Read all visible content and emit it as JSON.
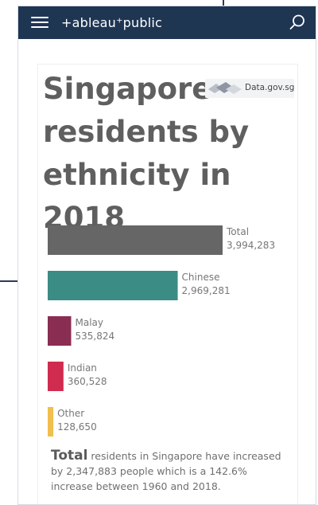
{
  "app": {
    "logo_text": "+ableau⁺public",
    "menu_icon": "hamburger-menu-icon",
    "search_icon": "search-icon",
    "header_color": "#1f3653"
  },
  "viz": {
    "title": "Singapore\nresidents by\nethnicity in 2018",
    "source_label": "Data.gov.sg",
    "footnote_lead": "Total",
    "footnote_rest": " residents in Singapore have increased by 2,347,883 people which is a 142.6% increase between 1960 and 2018."
  },
  "chart_data": {
    "type": "bar",
    "orientation": "horizontal",
    "categories": [
      "Total",
      "Chinese",
      "Malay",
      "Indian",
      "Other"
    ],
    "values": [
      3994283,
      2969281,
      535824,
      360528,
      128650
    ],
    "value_labels": [
      "3,994,283",
      "2,969,281",
      "535,824",
      "360,528",
      "128,650"
    ],
    "colors": [
      "#666666",
      "#3b8c84",
      "#8a2d52",
      "#d02c4f",
      "#f1bf4d"
    ],
    "title": "",
    "xlabel": "",
    "ylabel": "",
    "grid": false
  }
}
